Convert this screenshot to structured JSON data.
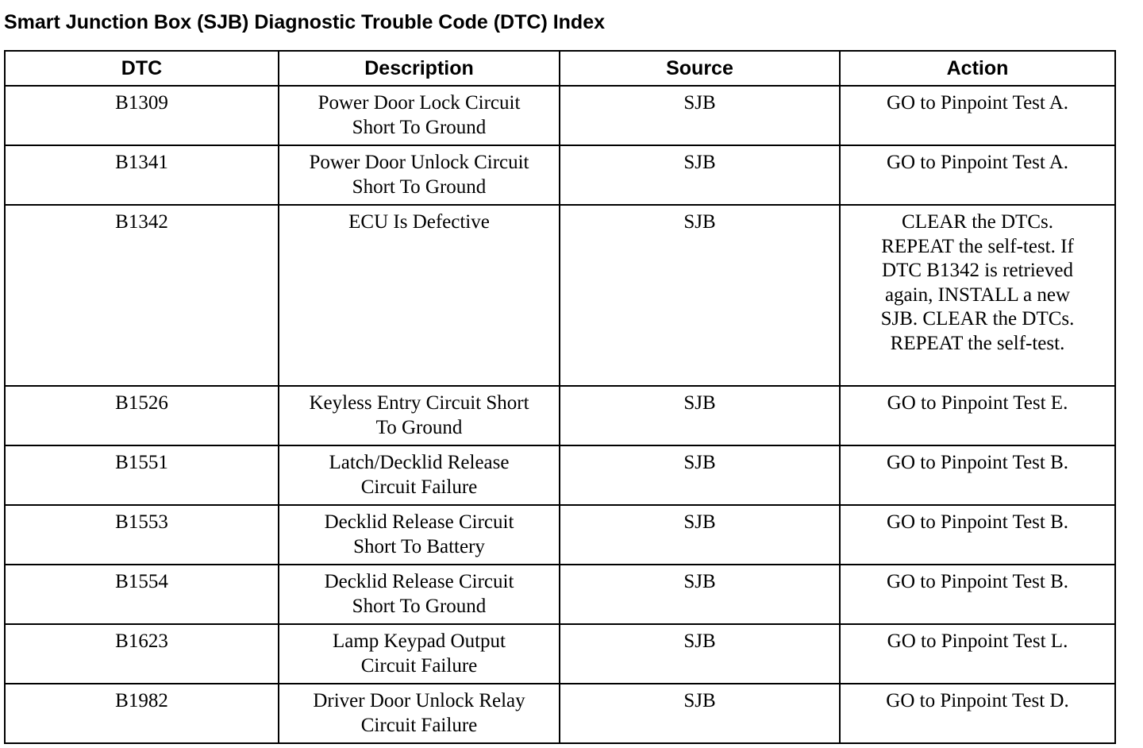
{
  "header": {
    "title": "Smart Junction Box (SJB) Diagnostic Trouble Code (DTC) Index"
  },
  "table": {
    "columns": [
      "DTC",
      "Description",
      "Source",
      "Action"
    ],
    "rows": [
      [
        [
          "B1309"
        ],
        [
          "Power Door Lock Circuit",
          "Short To Ground"
        ],
        [
          "SJB"
        ],
        [
          "GO to Pinpoint Test A."
        ]
      ],
      [
        [
          "B1341"
        ],
        [
          "Power Door Unlock Circuit",
          "Short To Ground"
        ],
        [
          "SJB"
        ],
        [
          "GO to Pinpoint Test A."
        ]
      ],
      [
        [
          "B1342"
        ],
        [
          "ECU Is Defective"
        ],
        [
          "SJB"
        ],
        [
          "CLEAR the DTCs.",
          "REPEAT the self-test. If",
          "DTC B1342 is retrieved",
          "again, INSTALL a new",
          "SJB. CLEAR the DTCs.",
          "REPEAT the self-test."
        ]
      ],
      [
        [
          "B1526"
        ],
        [
          "Keyless Entry Circuit Short",
          "To Ground"
        ],
        [
          "SJB"
        ],
        [
          "GO to Pinpoint Test E."
        ]
      ],
      [
        [
          "B1551"
        ],
        [
          "Latch/Decklid Release",
          "Circuit Failure"
        ],
        [
          "SJB"
        ],
        [
          "GO to Pinpoint Test B."
        ]
      ],
      [
        [
          "B1553"
        ],
        [
          "Decklid Release Circuit",
          "Short To Battery"
        ],
        [
          "SJB"
        ],
        [
          "GO to Pinpoint Test B."
        ]
      ],
      [
        [
          "B1554"
        ],
        [
          "Decklid Release Circuit",
          "Short To Ground"
        ],
        [
          "SJB"
        ],
        [
          "GO to Pinpoint Test B."
        ]
      ],
      [
        [
          "B1623"
        ],
        [
          "Lamp Keypad Output",
          "Circuit Failure"
        ],
        [
          "SJB"
        ],
        [
          "GO to Pinpoint Test L."
        ]
      ],
      [
        [
          "B1982"
        ],
        [
          "Driver Door Unlock Relay",
          "Circuit Failure"
        ],
        [
          "SJB"
        ],
        [
          "GO to Pinpoint Test D."
        ]
      ]
    ]
  }
}
